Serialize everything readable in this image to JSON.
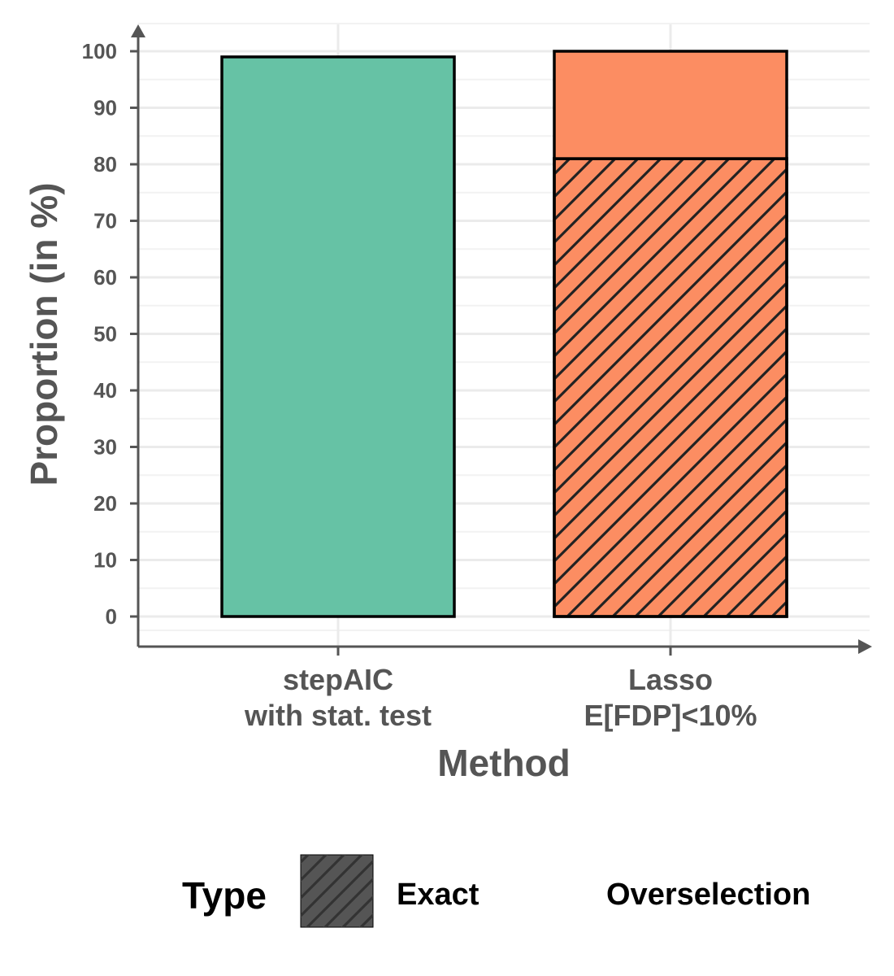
{
  "chart_data": {
    "type": "bar",
    "stacked": true,
    "categories": [
      "stepAIC\nwith stat. test",
      "Lasso\nE[FDP]<10%"
    ],
    "xlabel": "Method",
    "ylabel": "Proportion (in %)",
    "ylim": [
      0,
      100
    ],
    "yticks": [
      0,
      10,
      20,
      30,
      40,
      50,
      60,
      70,
      80,
      90,
      100
    ],
    "grid": true,
    "bar_colors": [
      "#66c2a5",
      "#fc8d62"
    ],
    "series": [
      {
        "name": "Exact",
        "pattern": "hatched",
        "values": [
          0,
          81
        ]
      },
      {
        "name": "Overselection",
        "pattern": "none",
        "values": [
          99,
          19
        ]
      }
    ],
    "legend": {
      "title": "Type",
      "placement": "bottom",
      "entries": [
        "Exact",
        "Overselection"
      ],
      "exact_swatch_color": "#555555"
    }
  }
}
